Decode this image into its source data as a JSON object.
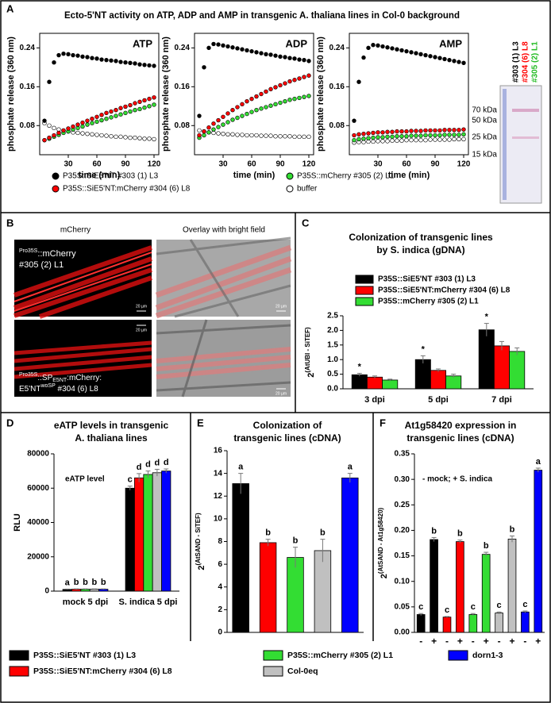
{
  "panel_letters": [
    "A",
    "B",
    "C",
    "D",
    "E",
    "F"
  ],
  "panel_a_title": "Ecto-5'NT activity on ATP, ADP and AMP in transgenic A. thaliana lines in Col-0 background",
  "legend_a": [
    {
      "name": "P35S::SiE5'NT #303 (1) L3",
      "color": "#000000"
    },
    {
      "name": "P35S::SiE5'NT:mCherry #304 (6) L8",
      "color": "#ff0000"
    },
    {
      "name": "P35S::mCherry #305 (2) L1",
      "color": "#33dd33"
    },
    {
      "name": "buffer",
      "color": "#ffffff"
    }
  ],
  "gel": {
    "markers": [
      "70 kDa",
      "50 kDa",
      "25 kDa",
      "15 kDa"
    ],
    "lanes": [
      {
        "name": "#303 (1) L3",
        "color": "#000000"
      },
      {
        "name": "#304 (6) L8",
        "color": "#ff0000"
      },
      {
        "name": "#305 (2) L1",
        "color": "#22bb22"
      }
    ]
  },
  "microscopy": {
    "columns": [
      "mCherry",
      "Overlay with bright field"
    ],
    "top_label": [
      "Pro35S",
      "::mCherry",
      "#305 (2) L1"
    ],
    "bottom_label": [
      "Pro35S",
      "::SP",
      "E5NT",
      ":mCherry:",
      "E5'NT",
      "woSP",
      " #304 (6) L8"
    ],
    "scale_bars": [
      "20 µm",
      "20 µm",
      "20 µm",
      "20 µm"
    ]
  },
  "legend_def": [
    {
      "name": "P35S::SiE5'NT #303 (1) L3",
      "color": "#000000"
    },
    {
      "name": "P35S::SiE5'NT:mCherry #304 (6) L8",
      "color": "#ff0000"
    },
    {
      "name": "P35S::mCherry #305 (2) L1",
      "color": "#33dd33"
    },
    {
      "name": "Col-0eq",
      "color": "#c0c0c0"
    },
    {
      "name": "dorn1-3",
      "color": "#0000ff"
    }
  ],
  "chart_data": [
    {
      "type": "scatter",
      "title": "ATP",
      "x_label": "time (min)",
      "y_label": "phosphate release (360 nm)",
      "x": [
        5,
        10,
        15,
        20,
        25,
        30,
        35,
        40,
        45,
        50,
        55,
        60,
        65,
        70,
        75,
        80,
        85,
        90,
        95,
        100,
        105,
        110,
        115,
        120
      ],
      "xlim": [
        0,
        125
      ],
      "xticks": [
        30,
        60,
        90,
        120
      ],
      "ylim": [
        0.02,
        0.27
      ],
      "yticks": [
        0.08,
        0.16,
        0.24
      ],
      "series": [
        {
          "color": "#000000",
          "values": [
            0.09,
            0.17,
            0.21,
            0.225,
            0.228,
            0.227,
            0.225,
            0.224,
            0.222,
            0.221,
            0.219,
            0.218,
            0.216,
            0.215,
            0.214,
            0.213,
            0.211,
            0.21,
            0.209,
            0.208,
            0.206,
            0.205,
            0.204,
            0.203
          ]
        },
        {
          "color": "#ff0000",
          "values": [
            0.05,
            0.055,
            0.06,
            0.065,
            0.07,
            0.074,
            0.078,
            0.082,
            0.086,
            0.09,
            0.094,
            0.098,
            0.102,
            0.106,
            0.109,
            0.112,
            0.116,
            0.119,
            0.122,
            0.126,
            0.129,
            0.132,
            0.135,
            0.138
          ]
        },
        {
          "color": "#33dd33",
          "values": [
            0.05,
            0.053,
            0.057,
            0.061,
            0.065,
            0.068,
            0.072,
            0.075,
            0.078,
            0.082,
            0.085,
            0.088,
            0.091,
            0.094,
            0.097,
            0.1,
            0.103,
            0.106,
            0.109,
            0.112,
            0.114,
            0.117,
            0.12,
            0.123
          ]
        },
        {
          "color": "#ffffff",
          "values": [
            0.085,
            0.08,
            0.075,
            0.072,
            0.07,
            0.068,
            0.066,
            0.065,
            0.064,
            0.063,
            0.062,
            0.061,
            0.06,
            0.059,
            0.058,
            0.057,
            0.057,
            0.056,
            0.055,
            0.055,
            0.054,
            0.053,
            0.053,
            0.052
          ]
        }
      ]
    },
    {
      "type": "scatter",
      "title": "ADP",
      "x_label": "time (min)",
      "y_label": "phosphate release (360 nm)",
      "x": [
        5,
        10,
        15,
        20,
        25,
        30,
        35,
        40,
        45,
        50,
        55,
        60,
        65,
        70,
        75,
        80,
        85,
        90,
        95,
        100,
        105,
        110,
        115,
        120
      ],
      "xlim": [
        0,
        125
      ],
      "xticks": [
        30,
        60,
        90,
        120
      ],
      "ylim": [
        0.02,
        0.27
      ],
      "yticks": [
        0.08,
        0.16,
        0.24
      ],
      "series": [
        {
          "color": "#000000",
          "values": [
            0.1,
            0.2,
            0.24,
            0.248,
            0.247,
            0.245,
            0.243,
            0.241,
            0.239,
            0.237,
            0.235,
            0.233,
            0.231,
            0.229,
            0.227,
            0.226,
            0.224,
            0.222,
            0.221,
            0.219,
            0.218,
            0.216,
            0.215,
            0.213
          ]
        },
        {
          "color": "#ff0000",
          "values": [
            0.06,
            0.068,
            0.076,
            0.084,
            0.091,
            0.098,
            0.105,
            0.112,
            0.118,
            0.124,
            0.13,
            0.135,
            0.14,
            0.145,
            0.15,
            0.155,
            0.159,
            0.163,
            0.167,
            0.171,
            0.174,
            0.177,
            0.18,
            0.183
          ]
        },
        {
          "color": "#33dd33",
          "values": [
            0.055,
            0.06,
            0.066,
            0.072,
            0.077,
            0.082,
            0.087,
            0.092,
            0.096,
            0.1,
            0.104,
            0.108,
            0.112,
            0.115,
            0.118,
            0.121,
            0.124,
            0.127,
            0.13,
            0.133,
            0.135,
            0.137,
            0.139,
            0.141
          ]
        },
        {
          "color": "#ffffff",
          "values": [
            0.07,
            0.068,
            0.066,
            0.065,
            0.064,
            0.063,
            0.062,
            0.062,
            0.061,
            0.061,
            0.06,
            0.06,
            0.06,
            0.059,
            0.059,
            0.059,
            0.058,
            0.058,
            0.058,
            0.058,
            0.057,
            0.057,
            0.057,
            0.057
          ]
        }
      ]
    },
    {
      "type": "scatter",
      "title": "AMP",
      "x_label": "time (min)",
      "y_label": "phosphate release (360 nm)",
      "x": [
        5,
        10,
        15,
        20,
        25,
        30,
        35,
        40,
        45,
        50,
        55,
        60,
        65,
        70,
        75,
        80,
        85,
        90,
        95,
        100,
        105,
        110,
        115,
        120
      ],
      "xlim": [
        0,
        125
      ],
      "xticks": [
        30,
        60,
        90,
        120
      ],
      "ylim": [
        0.02,
        0.27
      ],
      "yticks": [
        0.08,
        0.16,
        0.24
      ],
      "series": [
        {
          "color": "#000000",
          "values": [
            0.09,
            0.17,
            0.22,
            0.24,
            0.246,
            0.245,
            0.243,
            0.241,
            0.239,
            0.237,
            0.235,
            0.233,
            0.231,
            0.229,
            0.227,
            0.225,
            0.223,
            0.221,
            0.219,
            0.217,
            0.215,
            0.213,
            0.211,
            0.209
          ]
        },
        {
          "color": "#ff0000",
          "values": [
            0.06,
            0.062,
            0.063,
            0.064,
            0.065,
            0.066,
            0.066,
            0.067,
            0.067,
            0.068,
            0.068,
            0.068,
            0.069,
            0.069,
            0.069,
            0.07,
            0.07,
            0.07,
            0.07,
            0.071,
            0.071,
            0.071,
            0.071,
            0.072
          ]
        },
        {
          "color": "#33dd33",
          "values": [
            0.05,
            0.052,
            0.053,
            0.054,
            0.055,
            0.056,
            0.056,
            0.057,
            0.057,
            0.058,
            0.058,
            0.058,
            0.059,
            0.059,
            0.059,
            0.06,
            0.06,
            0.06,
            0.06,
            0.061,
            0.061,
            0.061,
            0.061,
            0.062
          ]
        },
        {
          "color": "#ffffff",
          "values": [
            0.045,
            0.046,
            0.046,
            0.047,
            0.047,
            0.048,
            0.048,
            0.048,
            0.049,
            0.049,
            0.049,
            0.05,
            0.05,
            0.05,
            0.05,
            0.05,
            0.051,
            0.051,
            0.051,
            0.051,
            0.051,
            0.052,
            0.052,
            0.052
          ]
        }
      ]
    },
    {
      "type": "bar",
      "title": [
        "Colonization of transgenic lines",
        "by S. indica (gDNA)"
      ],
      "y_label": [
        "2",
        "(AtUBI - SiTEF)"
      ],
      "categories": [
        "3 dpi",
        "5 dpi",
        "7 dpi"
      ],
      "ylim": [
        0,
        2.5
      ],
      "yticks": [
        {
          "value": 0,
          "label": "0.0"
        },
        0.5,
        {
          "value": 1,
          "label": "1.0"
        },
        1.5,
        {
          "value": 2,
          "label": "2.0"
        },
        2.5
      ],
      "series": [
        {
          "name": "P35S::SiE5'NT #303 (1) L3",
          "color": "#000000",
          "values": [
            0.48,
            1.0,
            2.02
          ],
          "errors": [
            0.05,
            0.13,
            0.22
          ],
          "letters": [
            "*",
            "*",
            "*"
          ]
        },
        {
          "name": "P35S::SiE5'NT:mCherry #304 (6) L8",
          "color": "#ff0000",
          "values": [
            0.4,
            0.63,
            1.47
          ],
          "errors": [
            0.04,
            0.05,
            0.15
          ]
        },
        {
          "name": "P35S::mCherry #305 (2) L1",
          "color": "#33dd33",
          "values": [
            0.3,
            0.44,
            1.28
          ],
          "errors": [
            0.03,
            0.06,
            0.12
          ]
        }
      ]
    },
    {
      "type": "bar",
      "title": [
        "eATP levels in transgenic",
        "A. thaliana lines"
      ],
      "annotation": "eATP level",
      "y_label": "RLU",
      "categories": [
        "mock 5 dpi",
        "S. indica 5 dpi"
      ],
      "ylim": [
        0,
        80000
      ],
      "yticks": [
        0,
        20000,
        40000,
        60000,
        80000
      ],
      "series": [
        {
          "color": "#000000",
          "values": [
            1000,
            60000
          ],
          "errors": [
            200,
            1200
          ],
          "letters": [
            "a",
            "c"
          ]
        },
        {
          "color": "#ff0000",
          "values": [
            1100,
            66000
          ],
          "errors": [
            200,
            2500
          ],
          "letters": [
            "b",
            "d"
          ]
        },
        {
          "color": "#33dd33",
          "values": [
            1100,
            68000
          ],
          "errors": [
            200,
            2000
          ],
          "letters": [
            "b",
            "d"
          ]
        },
        {
          "color": "#c0c0c0",
          "values": [
            1100,
            69000
          ],
          "errors": [
            200,
            2000
          ],
          "letters": [
            "b",
            "d"
          ]
        },
        {
          "color": "#0000ff",
          "values": [
            1100,
            70000
          ],
          "errors": [
            200,
            1200
          ],
          "letters": [
            "b",
            "d"
          ]
        }
      ]
    },
    {
      "type": "bar",
      "title": [
        "Colonization of",
        "transgenic lines (cDNA)"
      ],
      "y_label": [
        "2",
        "(AtSAND - SiTEF)"
      ],
      "ylim": [
        0,
        16
      ],
      "yticks": [
        0,
        2,
        4,
        6,
        8,
        10,
        12,
        14,
        16
      ],
      "values": [
        13.1,
        7.9,
        6.6,
        7.2,
        13.6
      ],
      "errors": [
        0.9,
        0.3,
        0.9,
        1.0,
        0.4
      ],
      "colors": [
        "#000000",
        "#ff0000",
        "#33dd33",
        "#c0c0c0",
        "#0000ff"
      ],
      "letters": [
        "a",
        "b",
        "b",
        "b",
        "a"
      ]
    },
    {
      "type": "bar",
      "title": [
        "At1g58420 expression in",
        "transgenic lines (cDNA)"
      ],
      "annotation": "- mock; + S. indica",
      "y_label": [
        "2",
        "(AtSAND - At1g58420)"
      ],
      "categories": [
        "-",
        "+",
        "-",
        "+",
        "-",
        "+",
        "-",
        "+",
        "-",
        "+"
      ],
      "ylim": [
        0,
        0.35
      ],
      "yticks": [
        {
          "value": 0,
          "label": "0.00"
        },
        0.05,
        {
          "value": 0.1,
          "label": "0.10"
        },
        0.15,
        {
          "value": 0.2,
          "label": "0.20"
        },
        0.25,
        {
          "value": 0.3,
          "label": "0.30"
        },
        0.35
      ],
      "values": [
        0.035,
        0.182,
        0.03,
        0.178,
        0.035,
        0.153,
        0.038,
        0.183,
        0.04,
        0.318
      ],
      "errors": [
        0.002,
        0.004,
        0.001,
        0.003,
        0.002,
        0.004,
        0.002,
        0.006,
        0.002,
        0.004
      ],
      "colors": [
        "#000000",
        "#000000",
        "#ff0000",
        "#ff0000",
        "#33dd33",
        "#33dd33",
        "#c0c0c0",
        "#c0c0c0",
        "#0000ff",
        "#0000ff"
      ],
      "letters": [
        "c",
        "b",
        "c",
        "b",
        "c",
        "b",
        "c",
        "b",
        "c",
        "a"
      ]
    }
  ]
}
